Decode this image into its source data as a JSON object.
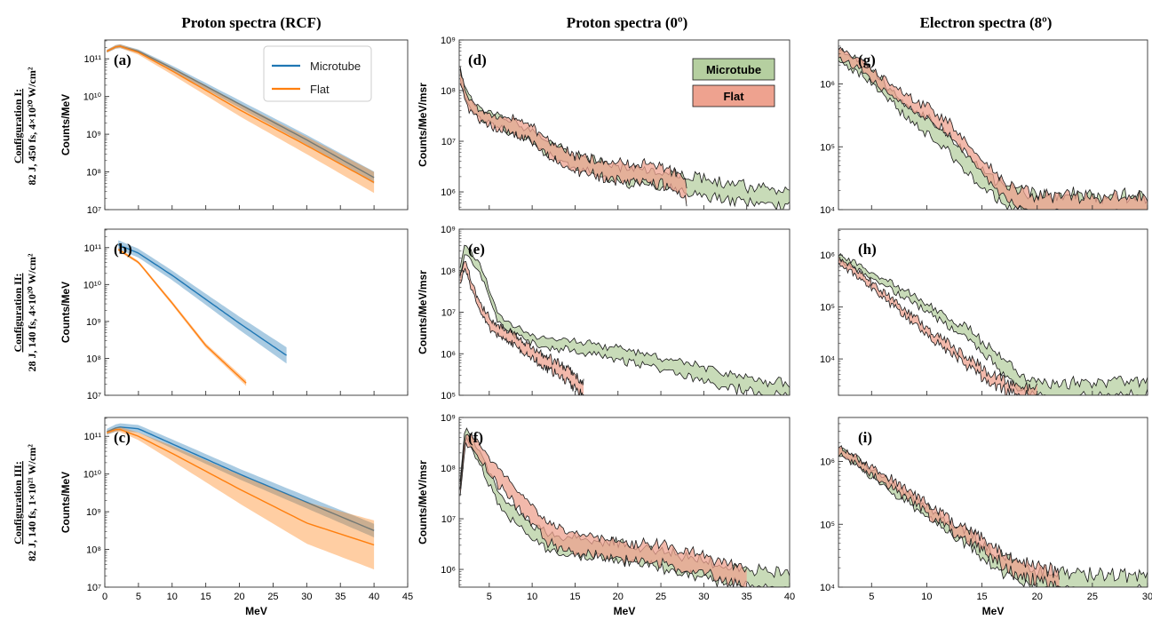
{
  "column_titles": [
    "Proton spectra (RCF)",
    "Proton spectra (0º)",
    "Electron spectra (8º)"
  ],
  "row_labels": [
    {
      "title": "Configuration I:",
      "detail": "82 J, 450 fs, 4×10²⁰ W/cm²"
    },
    {
      "title": "Configuration II:",
      "detail": "28 J, 140 fs, 4×10²⁰ W/cm²"
    },
    {
      "title": "Configuration III:",
      "detail": "82 J, 140 fs, 1×10²¹ W/cm²"
    }
  ],
  "colors": {
    "microtube_rcf": "#1f77b4",
    "flat_rcf": "#ff7f0e",
    "microtube_fill": "#b5cfa0",
    "flat_fill": "#eea28f",
    "edge": "#1a1a1a"
  },
  "chart_data": [
    {
      "id": "a",
      "type": "area",
      "label": "(a)",
      "xlabel": "",
      "ylabel": "Counts/MeV",
      "xlim": [
        0,
        45
      ],
      "ylim_log10": [
        7,
        11.5
      ],
      "log_y": true,
      "xticks": [
        "",
        "",
        "",
        "",
        "",
        "",
        "",
        "",
        "",
        ""
      ],
      "yticks": [
        "10⁷",
        "10⁸",
        "10⁹",
        "10¹⁰",
        "10¹¹"
      ],
      "legend": {
        "style": "line",
        "position": "upper-right",
        "entries": [
          "Microtube",
          "Flat"
        ]
      },
      "series": [
        {
          "name": "Microtube",
          "x": [
            0.3,
            2,
            5,
            10,
            20,
            30,
            40
          ],
          "log10_y": [
            11.2,
            11.35,
            11.2,
            10.75,
            9.8,
            8.85,
            7.85
          ],
          "log10_spread": [
            0.04,
            0.05,
            0.05,
            0.07,
            0.1,
            0.13,
            0.16
          ]
        },
        {
          "name": "Flat",
          "x": [
            0.3,
            2,
            5,
            10,
            20,
            30,
            40
          ],
          "log10_y": [
            11.2,
            11.35,
            11.17,
            10.68,
            9.65,
            8.7,
            7.72
          ],
          "log10_spread": [
            0.04,
            0.05,
            0.06,
            0.1,
            0.17,
            0.23,
            0.28
          ]
        }
      ]
    },
    {
      "id": "b",
      "type": "area",
      "label": "(b)",
      "xlabel": "",
      "ylabel": "Counts/MeV",
      "xlim": [
        0,
        45
      ],
      "ylim_log10": [
        7,
        11.5
      ],
      "log_y": true,
      "xticks": [
        "",
        "",
        "",
        "",
        "",
        "",
        "",
        "",
        "",
        ""
      ],
      "yticks": [
        "10⁷",
        "10⁸",
        "10⁹",
        "10¹⁰",
        "10¹¹"
      ],
      "series": [
        {
          "name": "Microtube",
          "x": [
            2,
            5,
            10,
            15,
            20,
            27
          ],
          "log10_y": [
            11.08,
            10.85,
            10.25,
            9.6,
            8.95,
            8.08
          ],
          "log10_spread": [
            0.12,
            0.12,
            0.13,
            0.15,
            0.18,
            0.22
          ]
        },
        {
          "name": "Flat",
          "x": [
            2,
            5,
            10,
            15,
            21
          ],
          "log10_y": [
            10.95,
            10.6,
            9.5,
            8.35,
            7.33
          ],
          "log10_spread": [
            0.04,
            0.04,
            0.05,
            0.06,
            0.08
          ]
        }
      ]
    },
    {
      "id": "c",
      "type": "area",
      "label": "(c)",
      "xlabel": "MeV",
      "ylabel": "Counts/MeV",
      "xlim": [
        0,
        45
      ],
      "ylim_log10": [
        7,
        11.5
      ],
      "log_y": true,
      "xticks": [
        "0",
        "5",
        "10",
        "15",
        "20",
        "25",
        "30",
        "35",
        "40",
        "45"
      ],
      "yticks": [
        "10⁷",
        "10⁸",
        "10⁹",
        "10¹⁰",
        "10¹¹"
      ],
      "series": [
        {
          "name": "Microtube",
          "x": [
            0.3,
            2,
            5,
            10,
            20,
            30,
            40
          ],
          "log10_y": [
            11.12,
            11.25,
            11.2,
            10.8,
            10.0,
            9.25,
            8.5
          ],
          "log10_spread": [
            0.08,
            0.1,
            0.1,
            0.12,
            0.14,
            0.16,
            0.18
          ]
        },
        {
          "name": "Flat",
          "x": [
            0.3,
            2,
            5,
            10,
            20,
            30,
            40
          ],
          "log10_y": [
            11.1,
            11.2,
            11.0,
            10.55,
            9.6,
            8.7,
            8.12
          ],
          "log10_spread": [
            0.05,
            0.06,
            0.1,
            0.2,
            0.38,
            0.55,
            0.65
          ]
        }
      ]
    },
    {
      "id": "d",
      "type": "area",
      "label": "(d)",
      "xlabel": "",
      "ylabel": "Counts/MeV/msr",
      "xlim": [
        1.5,
        40
      ],
      "ylim_log10": [
        5.65,
        9
      ],
      "log_y": true,
      "xticks": [
        "",
        "",
        "",
        "",
        "",
        "",
        "",
        ""
      ],
      "yticks": [
        "10⁶",
        "10⁷",
        "10⁸",
        "10⁹"
      ],
      "legend": {
        "style": "box",
        "position": "upper-right",
        "entries": [
          "Microtube",
          "Flat"
        ]
      },
      "series": [
        {
          "name": "Microtube",
          "x": [
            1.6,
            2.5,
            4,
            6,
            8,
            10,
            12,
            15,
            20,
            25,
            30,
            35,
            40
          ],
          "log10_y": [
            8.35,
            7.8,
            7.55,
            7.4,
            7.25,
            7.1,
            6.85,
            6.6,
            6.35,
            6.25,
            6.1,
            5.95,
            5.85
          ],
          "log10_spread": [
            0.12,
            0.1,
            0.1,
            0.12,
            0.12,
            0.13,
            0.13,
            0.14,
            0.15,
            0.15,
            0.16,
            0.16,
            0.16
          ]
        },
        {
          "name": "Flat",
          "x": [
            1.6,
            2.5,
            4,
            6,
            8,
            10,
            12,
            15,
            20,
            25,
            28
          ],
          "log10_y": [
            8.3,
            7.75,
            7.5,
            7.35,
            7.3,
            7.15,
            6.85,
            6.55,
            6.4,
            6.35,
            6.0
          ],
          "log10_spread": [
            0.12,
            0.1,
            0.1,
            0.12,
            0.14,
            0.15,
            0.15,
            0.16,
            0.17,
            0.18,
            0.18
          ]
        }
      ]
    },
    {
      "id": "e",
      "type": "area",
      "label": "(e)",
      "xlabel": "",
      "ylabel": "Counts/MeV/msr",
      "xlim": [
        1.5,
        40
      ],
      "ylim_log10": [
        5,
        9
      ],
      "log_y": true,
      "xticks": [
        "",
        "",
        "",
        "",
        "",
        "",
        "",
        ""
      ],
      "yticks": [
        "10⁵",
        "10⁶",
        "10⁷",
        "10⁸",
        "10⁹"
      ],
      "series": [
        {
          "name": "Microtube",
          "x": [
            1.6,
            2.2,
            3,
            4,
            5,
            6,
            8,
            10,
            12,
            15,
            20,
            25,
            30,
            35,
            40
          ],
          "log10_y": [
            8.0,
            8.55,
            8.3,
            8.0,
            7.5,
            6.85,
            6.55,
            6.35,
            6.25,
            6.2,
            6.0,
            5.75,
            5.5,
            5.25,
            5.1
          ],
          "log10_spread": [
            0.1,
            0.1,
            0.1,
            0.1,
            0.1,
            0.1,
            0.1,
            0.1,
            0.12,
            0.12,
            0.14,
            0.15,
            0.16,
            0.16,
            0.16
          ]
        },
        {
          "name": "Flat",
          "x": [
            1.6,
            2.2,
            3,
            4,
            5,
            6,
            8,
            10,
            12,
            14,
            16
          ],
          "log10_y": [
            7.8,
            8.15,
            7.6,
            7.1,
            6.75,
            6.55,
            6.35,
            6.0,
            5.75,
            5.5,
            5.1
          ],
          "log10_spread": [
            0.1,
            0.1,
            0.1,
            0.1,
            0.12,
            0.12,
            0.13,
            0.14,
            0.15,
            0.15,
            0.15
          ]
        }
      ]
    },
    {
      "id": "f",
      "type": "area",
      "label": "(f)",
      "xlabel": "MeV",
      "ylabel": "Counts/MeV/msr",
      "xlim": [
        1.5,
        40
      ],
      "ylim_log10": [
        5.65,
        9
      ],
      "log_y": true,
      "xticks": [
        "5",
        "10",
        "15",
        "20",
        "25",
        "30",
        "35",
        "40"
      ],
      "yticks": [
        "10⁶",
        "10⁷",
        "10⁸",
        "10⁹"
      ],
      "series": [
        {
          "name": "Microtube",
          "x": [
            1.6,
            2.2,
            3,
            4,
            5,
            6,
            8,
            10,
            12,
            15,
            20,
            25,
            30,
            35,
            40
          ],
          "log10_y": [
            7.6,
            8.7,
            8.45,
            8.15,
            7.8,
            7.45,
            7.05,
            6.75,
            6.55,
            6.45,
            6.35,
            6.2,
            6.0,
            5.85,
            5.7
          ],
          "log10_spread": [
            0.1,
            0.1,
            0.12,
            0.12,
            0.14,
            0.14,
            0.14,
            0.15,
            0.15,
            0.16,
            0.16,
            0.16,
            0.17,
            0.17,
            0.17
          ]
        },
        {
          "name": "Flat",
          "x": [
            1.6,
            2.2,
            3,
            4,
            5,
            6,
            8,
            10,
            12,
            15,
            20,
            25,
            30,
            35
          ],
          "log10_y": [
            7.5,
            8.6,
            8.5,
            8.3,
            8.05,
            7.85,
            7.45,
            7.05,
            6.7,
            6.5,
            6.4,
            6.3,
            6.1,
            5.8
          ],
          "log10_spread": [
            0.1,
            0.1,
            0.12,
            0.14,
            0.15,
            0.16,
            0.17,
            0.17,
            0.18,
            0.18,
            0.18,
            0.18,
            0.18,
            0.18
          ]
        }
      ]
    },
    {
      "id": "g",
      "type": "area",
      "label": "(g)",
      "xlabel": "",
      "ylabel": "",
      "xlim": [
        2,
        30
      ],
      "ylim_log10": [
        4,
        6.7
      ],
      "log_y": true,
      "xticks": [
        "",
        "",
        "",
        "",
        "",
        ""
      ],
      "yticks": [
        "10⁴",
        "10⁵",
        "10⁶"
      ],
      "series": [
        {
          "name": "Microtube",
          "x": [
            2,
            4,
            6,
            8,
            10,
            12,
            14,
            16,
            18,
            20,
            25,
            30
          ],
          "log10_y": [
            6.5,
            6.25,
            5.95,
            5.6,
            5.35,
            5.05,
            4.65,
            4.35,
            4.15,
            4.05,
            4.05,
            4.05
          ],
          "log10_spread": [
            0.1,
            0.1,
            0.1,
            0.1,
            0.12,
            0.12,
            0.14,
            0.16,
            0.18,
            0.18,
            0.18,
            0.18
          ]
        },
        {
          "name": "Flat",
          "x": [
            2,
            4,
            6,
            8,
            10,
            12,
            14,
            16,
            18,
            20,
            25,
            30
          ],
          "log10_y": [
            6.5,
            6.3,
            6.0,
            5.75,
            5.55,
            5.3,
            4.9,
            4.5,
            4.2,
            4.05,
            4.05,
            4.05
          ],
          "log10_spread": [
            0.08,
            0.08,
            0.08,
            0.08,
            0.1,
            0.1,
            0.1,
            0.12,
            0.14,
            0.16,
            0.16,
            0.16
          ]
        }
      ]
    },
    {
      "id": "h",
      "type": "area",
      "label": "(h)",
      "xlabel": "",
      "ylabel": "",
      "xlim": [
        2,
        30
      ],
      "ylim_log10": [
        3.3,
        6.5
      ],
      "log_y": true,
      "xticks": [
        "",
        "",
        "",
        "",
        "",
        ""
      ],
      "yticks": [
        "10⁴",
        "10⁵",
        "10⁶"
      ],
      "series": [
        {
          "name": "Microtube",
          "x": [
            2,
            4,
            6,
            8,
            10,
            12,
            14,
            16,
            18,
            20,
            25,
            30
          ],
          "log10_y": [
            5.95,
            5.75,
            5.5,
            5.25,
            5.0,
            4.7,
            4.45,
            4.05,
            3.65,
            3.4,
            3.4,
            3.45
          ],
          "log10_spread": [
            0.06,
            0.06,
            0.06,
            0.07,
            0.07,
            0.08,
            0.1,
            0.12,
            0.14,
            0.14,
            0.14,
            0.14
          ]
        },
        {
          "name": "Flat",
          "x": [
            2,
            4,
            6,
            8,
            10,
            12,
            14,
            16,
            18,
            20
          ],
          "log10_y": [
            5.9,
            5.6,
            5.25,
            4.9,
            4.55,
            4.2,
            3.9,
            3.6,
            3.4,
            3.35
          ],
          "log10_spread": [
            0.06,
            0.06,
            0.06,
            0.07,
            0.07,
            0.08,
            0.08,
            0.1,
            0.1,
            0.1
          ]
        }
      ]
    },
    {
      "id": "i",
      "type": "area",
      "label": "(i)",
      "xlabel": "MeV",
      "ylabel": "",
      "xlim": [
        2,
        30
      ],
      "ylim_log10": [
        4,
        6.7
      ],
      "log_y": true,
      "xticks": [
        "5",
        "10",
        "15",
        "20",
        "25",
        "30"
      ],
      "yticks": [
        "10⁴",
        "10⁵",
        "10⁶"
      ],
      "series": [
        {
          "name": "Microtube",
          "x": [
            2,
            4,
            6,
            8,
            10,
            12,
            14,
            16,
            18,
            20,
            25,
            30
          ],
          "log10_y": [
            6.18,
            5.95,
            5.7,
            5.45,
            5.2,
            4.95,
            4.75,
            4.45,
            4.25,
            4.1,
            4.05,
            4.05
          ],
          "log10_spread": [
            0.06,
            0.06,
            0.07,
            0.07,
            0.08,
            0.09,
            0.1,
            0.12,
            0.14,
            0.14,
            0.14,
            0.14
          ]
        },
        {
          "name": "Flat",
          "x": [
            2,
            4,
            6,
            8,
            10,
            12,
            14,
            16,
            18,
            20,
            22
          ],
          "log10_y": [
            6.18,
            5.97,
            5.75,
            5.5,
            5.25,
            5.0,
            4.8,
            4.55,
            4.35,
            4.2,
            4.1
          ],
          "log10_spread": [
            0.06,
            0.06,
            0.07,
            0.07,
            0.08,
            0.08,
            0.09,
            0.1,
            0.12,
            0.12,
            0.12
          ]
        }
      ]
    }
  ]
}
